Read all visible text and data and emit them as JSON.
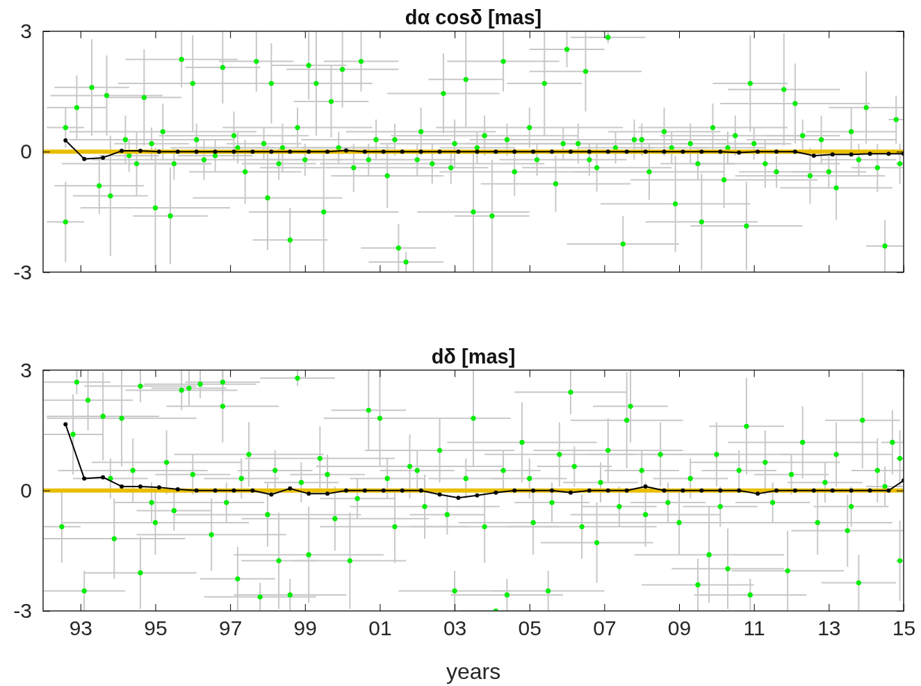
{
  "chart_data": [
    {
      "type": "scatter",
      "title": "dα cosδ   [mas]",
      "xlim": [
        1992,
        2015
      ],
      "ylim": [
        -3,
        3
      ],
      "yticks": [
        -3,
        0,
        3
      ],
      "tick_labels": "y",
      "marker": "circle",
      "xticks": [
        {
          "value": 1993,
          "label": null
        },
        {
          "value": 1995,
          "label": null
        },
        {
          "value": 1997,
          "label": null
        },
        {
          "value": 1999,
          "label": null
        },
        {
          "value": 2001,
          "label": null
        },
        {
          "value": 2003,
          "label": null
        },
        {
          "value": 2005,
          "label": null
        },
        {
          "value": 2007,
          "label": null
        },
        {
          "value": 2009,
          "label": null
        },
        {
          "value": 2011,
          "label": null
        },
        {
          "value": 2013,
          "label": null
        },
        {
          "value": 2015,
          "label": null
        }
      ],
      "ref_lines": [
        {
          "axis": "y",
          "value": 0,
          "color": "#e8be00"
        }
      ],
      "series": [
        {
          "type": "scatter",
          "color": "#00ee00",
          "x": [
            1992.6,
            1992.6,
            1992.9,
            1993.3,
            1993.5,
            1993.7,
            1993.8,
            1994.2,
            1994.5,
            1994.7,
            1995.0,
            1995.2,
            1995.4,
            1995.7,
            1996.0,
            1996.3,
            1996.8,
            1997.1,
            1997.4,
            1997.7,
            1998.0,
            1998.1,
            1998.4,
            1998.6,
            1998.8,
            1999.1,
            1999.3,
            1999.5,
            1999.7,
            2000.0,
            2000.3,
            2000.5,
            2000.9,
            2001.2,
            2001.5,
            2001.7,
            2002.1,
            2002.4,
            2002.7,
            2003.0,
            2003.3,
            2003.5,
            2003.8,
            2004.0,
            2004.3,
            2004.6,
            2005.0,
            2005.4,
            2005.7,
            2006.0,
            2006.3,
            2006.5,
            2006.8,
            2007.1,
            2007.5,
            2007.8,
            2008.2,
            2008.6,
            2008.9,
            2009.3,
            2009.6,
            2009.9,
            2010.2,
            2010.5,
            2010.8,
            2010.9,
            2011.3,
            2011.8,
            2012.1,
            2012.5,
            2012.8,
            2013.2,
            2013.6,
            2014.0,
            2014.3,
            2014.5,
            2014.8,
            2014.9,
            1994.3,
            1994.9,
            1995.5,
            1996.1,
            1996.6,
            1997.2,
            1997.9,
            1998.3,
            1999.0,
            1999.9,
            2000.7,
            2001.4,
            2002.0,
            2002.9,
            2003.6,
            2004.4,
            2005.2,
            2005.9,
            2006.6,
            2007.3,
            2008.0,
            2008.8,
            2009.5,
            2010.3,
            2011.0,
            2011.6,
            2012.3,
            2013.0,
            2013.8
          ],
          "values": [
            0.6,
            -1.75,
            1.1,
            1.6,
            -0.85,
            1.4,
            -1.1,
            0.3,
            -0.3,
            1.35,
            -1.4,
            0.5,
            -1.6,
            2.3,
            1.7,
            -0.2,
            2.1,
            0.4,
            -0.5,
            2.25,
            -1.15,
            1.7,
            0.1,
            -2.2,
            0.6,
            2.15,
            1.7,
            -1.5,
            1.25,
            2.05,
            -0.4,
            2.25,
            0.3,
            -0.6,
            -2.4,
            -2.75,
            0.5,
            -0.3,
            1.45,
            0.2,
            1.8,
            -1.5,
            0.4,
            -1.6,
            2.25,
            -0.5,
            0.6,
            1.7,
            -0.8,
            2.55,
            0.2,
            2.0,
            -0.4,
            2.85,
            -2.3,
            0.3,
            -0.5,
            0.5,
            -1.3,
            0.2,
            -1.75,
            0.6,
            -0.7,
            0.4,
            -1.85,
            1.7,
            -0.3,
            1.55,
            1.2,
            -0.6,
            0.3,
            -0.9,
            0.5,
            1.1,
            -0.4,
            -2.35,
            0.8,
            -0.3,
            -0.1,
            0.2,
            -0.3,
            0.3,
            -0.1,
            0.1,
            0.2,
            -0.3,
            -0.2,
            0.1,
            -0.2,
            0.3,
            -0.2,
            -0.4,
            0.1,
            0.3,
            -0.2,
            0.2,
            -0.2,
            0.1,
            0.3,
            0.1,
            -0.3,
            0.1,
            0.2,
            -0.5,
            0.4,
            -0.5,
            -0.2
          ],
          "errors": [
            0.5,
            1.0,
            0.8,
            1.2,
            0.7,
            1.0,
            1.5,
            0.6,
            0.8,
            1.2,
            1.5,
            0.7,
            1.2,
            0.7,
            1.2,
            0.5,
            0.9,
            0.6,
            0.8,
            0.75,
            1.3,
            1.0,
            0.6,
            0.8,
            0.5,
            0.85,
            1.3,
            1.5,
            0.9,
            0.95,
            0.6,
            0.75,
            0.5,
            0.8,
            0.6,
            0.25,
            0.6,
            0.5,
            1.0,
            0.6,
            1.2,
            1.5,
            0.5,
            1.4,
            0.75,
            0.6,
            0.5,
            1.3,
            0.7,
            0.45,
            0.5,
            1.0,
            0.6,
            0.15,
            0.7,
            0.5,
            0.7,
            0.6,
            1.2,
            0.5,
            1.2,
            0.6,
            0.7,
            0.5,
            1.1,
            1.2,
            0.6,
            1.4,
            1.0,
            0.7,
            0.6,
            0.8,
            0.6,
            0.9,
            0.6,
            0.65,
            0.6,
            0.5,
            0.4,
            0.4,
            0.4,
            0.4,
            0.4,
            0.4,
            0.4,
            0.4,
            0.4,
            0.4,
            0.4,
            0.4,
            0.4,
            0.4,
            0.4,
            0.4,
            0.4,
            0.4,
            0.4,
            0.4,
            0.4,
            0.4,
            0.4,
            0.4,
            0.4,
            0.4,
            0.4,
            0.4,
            0.4
          ],
          "xerrors": [
            0.5,
            0.5,
            0.8,
            1.0,
            1.2,
            1.5,
            1.0,
            1.5,
            2.0,
            1.0,
            2.0,
            2.5,
            1.0,
            1.5,
            2.0,
            3.0,
            1.0,
            2.0,
            1.5,
            1.0,
            2.0,
            1.5,
            3.0,
            1.0,
            2.0,
            1.0,
            1.5,
            2.0,
            1.0,
            1.5,
            2.5,
            1.0,
            2.0,
            1.5,
            1.0,
            1.0,
            2.0,
            3.0,
            1.5,
            2.0,
            1.0,
            1.5,
            2.5,
            1.0,
            1.5,
            2.0,
            2.5,
            1.0,
            2.0,
            1.0,
            3.0,
            1.5,
            2.0,
            1.0,
            1.5,
            2.5,
            2.0,
            1.5,
            2.0,
            2.5,
            1.5,
            2.0,
            2.5,
            2.0,
            1.5,
            1.0,
            2.0,
            1.5,
            2.0,
            2.0,
            2.0,
            1.5,
            1.2,
            1.0,
            0.7,
            0.5,
            0.2,
            0.1,
            0.8,
            1.0,
            1.0,
            1.0,
            1.0,
            1.0,
            1.0,
            1.0,
            1.0,
            1.0,
            1.0,
            1.0,
            1.0,
            1.0,
            1.0,
            1.0,
            1.0,
            1.0,
            1.0,
            1.0,
            1.0,
            1.0,
            1.0,
            1.0,
            1.0,
            1.0,
            1.0,
            1.0,
            1.0
          ]
        },
        {
          "type": "line",
          "color": "#000000",
          "x": [
            1992.6,
            1993.1,
            1993.6,
            1994.1,
            1994.6,
            1995.1,
            1995.6,
            1996.1,
            1996.6,
            1997.1,
            1997.6,
            1998.1,
            1998.6,
            1999.1,
            1999.6,
            2000.1,
            2000.6,
            2001.1,
            2001.6,
            2002.1,
            2002.6,
            2003.1,
            2003.6,
            2004.1,
            2004.6,
            2005.1,
            2005.6,
            2006.1,
            2006.6,
            2007.1,
            2007.6,
            2008.1,
            2008.6,
            2009.1,
            2009.6,
            2010.1,
            2010.6,
            2011.1,
            2011.6,
            2012.1,
            2012.6,
            2013.1,
            2013.6,
            2014.1,
            2014.6,
            2015.0
          ],
          "values": [
            0.28,
            -0.18,
            -0.15,
            0.02,
            0.02,
            0,
            0,
            0,
            0,
            0,
            0,
            0,
            0,
            0,
            0,
            0.03,
            0,
            0,
            0,
            0,
            0,
            0,
            0,
            0,
            0,
            0,
            0,
            0,
            0,
            0,
            0,
            0,
            0,
            0,
            0,
            0,
            -0.02,
            0,
            0,
            0,
            -0.1,
            -0.07,
            -0.07,
            -0.05,
            -0.05,
            -0.05
          ]
        }
      ]
    },
    {
      "type": "scatter",
      "title": "dδ   [mas]",
      "xlabel": "years",
      "xlim": [
        1992,
        2015
      ],
      "ylim": [
        -3,
        3
      ],
      "yticks": [
        -3,
        0,
        3
      ],
      "marker": "circle",
      "xticks": [
        {
          "value": 1993,
          "label": "93"
        },
        {
          "value": 1995,
          "label": "95"
        },
        {
          "value": 1997,
          "label": "97"
        },
        {
          "value": 1999,
          "label": "99"
        },
        {
          "value": 2001,
          "label": "01"
        },
        {
          "value": 2003,
          "label": "03"
        },
        {
          "value": 2005,
          "label": "05"
        },
        {
          "value": 2007,
          "label": "07"
        },
        {
          "value": 2009,
          "label": "09"
        },
        {
          "value": 2011,
          "label": "11"
        },
        {
          "value": 2013,
          "label": "13"
        },
        {
          "value": 2015,
          "label": "15"
        }
      ],
      "ref_lines": [
        {
          "axis": "y",
          "value": 0,
          "color": "#e8be00"
        }
      ],
      "series": [
        {
          "type": "scatter",
          "color": "#00ee00",
          "x": [
            1992.5,
            1992.8,
            1992.9,
            1993.1,
            1993.2,
            1993.6,
            1993.9,
            1994.1,
            1994.4,
            1994.6,
            1994.6,
            1995.0,
            1995.3,
            1995.7,
            1995.9,
            1996.2,
            1996.5,
            1996.8,
            1996.8,
            1997.2,
            1997.5,
            1997.8,
            1998.0,
            1998.3,
            1998.6,
            1998.8,
            1999.1,
            1999.4,
            1999.8,
            2000.2,
            2000.7,
            2001.0,
            2001.4,
            2001.8,
            2002.2,
            2002.6,
            2003.0,
            2003.5,
            2003.8,
            2004.1,
            2004.4,
            2004.8,
            2005.1,
            2005.5,
            2005.8,
            2006.1,
            2006.4,
            2006.8,
            2007.1,
            2007.6,
            2007.7,
            2008.1,
            2008.5,
            2009.0,
            2009.5,
            2009.8,
            2010.0,
            2010.3,
            2010.8,
            2010.9,
            2011.3,
            2011.9,
            2012.3,
            2012.7,
            2013.2,
            2013.5,
            2013.8,
            2013.9,
            2014.3,
            2014.7,
            2014.9,
            2014.9,
            1993.8,
            1994.9,
            1995.5,
            1996.0,
            1996.9,
            1997.3,
            1998.2,
            1998.9,
            1999.6,
            2000.4,
            2001.2,
            2002.0,
            2002.8,
            2003.3,
            2004.3,
            2005.0,
            2005.6,
            2006.2,
            2006.9,
            2007.4,
            2008.0,
            2008.7,
            2009.3,
            2010.1,
            2010.6,
            2011.5,
            2012.0,
            2012.9,
            2013.6,
            2014.5
          ],
          "values": [
            -0.9,
            1.4,
            2.7,
            -2.5,
            2.25,
            1.85,
            -1.2,
            1.8,
            0.5,
            2.6,
            -2.05,
            -0.8,
            0.7,
            2.5,
            2.55,
            2.65,
            -1.1,
            2.7,
            2.1,
            -2.2,
            0.9,
            -2.65,
            -0.6,
            -1.75,
            -2.6,
            2.8,
            -1.6,
            0.8,
            -0.7,
            -1.75,
            2.0,
            1.8,
            -0.9,
            0.6,
            -0.4,
            1.0,
            -2.5,
            1.8,
            -0.9,
            -3.0,
            -2.6,
            1.2,
            -0.8,
            -2.5,
            0.9,
            2.45,
            -0.9,
            -1.3,
            1.0,
            1.75,
            2.1,
            -0.6,
            0.9,
            -0.8,
            -2.35,
            -1.6,
            0.9,
            -1.95,
            1.6,
            -2.6,
            0.7,
            -2.0,
            1.2,
            -0.8,
            0.9,
            -1.0,
            -2.3,
            1.75,
            0.5,
            1.2,
            -1.75,
            0.8,
            0.3,
            -0.3,
            -0.5,
            0.4,
            -0.3,
            0.3,
            0.5,
            0.2,
            0.4,
            -0.2,
            0.3,
            0.5,
            -0.6,
            0.3,
            0.5,
            0.3,
            -0.3,
            0.6,
            0.2,
            -0.4,
            0.5,
            -0.3,
            0.3,
            -0.4,
            0.5,
            -0.3,
            0.4,
            0.2,
            -0.4,
            0.1
          ],
          "errors": [
            0.9,
            1.0,
            0.3,
            0.5,
            0.75,
            1.1,
            1.0,
            1.2,
            0.8,
            0.4,
            0.9,
            0.8,
            0.8,
            0.5,
            0.45,
            0.35,
            0.9,
            0.3,
            0.9,
            0.8,
            0.8,
            0.35,
            0.8,
            1.2,
            0.4,
            0.2,
            1.2,
            0.8,
            0.8,
            1.2,
            1.0,
            1.2,
            0.9,
            0.8,
            0.8,
            0.8,
            0.5,
            1.2,
            0.9,
            null,
            0.4,
            1.0,
            0.8,
            0.5,
            0.8,
            0.55,
            0.8,
            1.0,
            0.8,
            1.2,
            0.9,
            0.8,
            0.8,
            0.8,
            0.65,
            1.2,
            0.8,
            1.0,
            1.2,
            0.4,
            0.8,
            1.0,
            0.9,
            0.8,
            0.8,
            0.9,
            0.7,
            1.2,
            0.8,
            0.8,
            1.0,
            0.7,
            0.5,
            0.5,
            0.5,
            0.5,
            0.5,
            0.5,
            0.5,
            0.5,
            0.5,
            0.5,
            0.5,
            0.5,
            0.5,
            0.5,
            0.5,
            0.5,
            0.5,
            0.5,
            0.5,
            0.5,
            0.5,
            0.5,
            0.5,
            0.5,
            0.5,
            0.5,
            0.5,
            0.5,
            0.5,
            0.5
          ],
          "xerrors": [
            0.5,
            0.8,
            0.9,
            1.1,
            1.2,
            1.5,
            1.9,
            2.0,
            2.0,
            1.5,
            1.5,
            2.5,
            2.0,
            1.5,
            1.0,
            1.5,
            2.0,
            1.0,
            1.5,
            1.0,
            2.0,
            1.5,
            2.5,
            1.0,
            1.5,
            1.0,
            2.0,
            2.0,
            2.5,
            1.5,
            1.0,
            1.5,
            2.0,
            2.5,
            2.0,
            2.0,
            1.5,
            1.0,
            2.0,
            1.0,
            1.5,
            2.0,
            2.0,
            1.5,
            2.0,
            1.5,
            2.0,
            1.5,
            2.0,
            1.5,
            1.0,
            2.0,
            2.0,
            2.0,
            1.5,
            2.0,
            2.0,
            1.5,
            1.0,
            1.5,
            2.0,
            1.5,
            2.0,
            2.0,
            1.5,
            1.5,
            1.0,
            1.0,
            0.7,
            0.3,
            0.1,
            0.1,
            1.0,
            1.0,
            1.0,
            1.0,
            1.0,
            1.0,
            1.0,
            1.0,
            1.0,
            1.0,
            1.0,
            1.0,
            1.0,
            1.0,
            1.0,
            1.0,
            1.0,
            1.0,
            1.0,
            1.0,
            1.0,
            1.0,
            1.0,
            1.0,
            1.0,
            1.0,
            1.0,
            1.0,
            1.0,
            0.5
          ]
        },
        {
          "type": "line",
          "color": "#000000",
          "x": [
            1992.6,
            1993.1,
            1993.6,
            1994.1,
            1994.6,
            1995.1,
            1995.6,
            1996.1,
            1996.6,
            1997.1,
            1997.6,
            1998.1,
            1998.6,
            1999.1,
            1999.6,
            2000.1,
            2000.6,
            2001.1,
            2001.6,
            2002.1,
            2002.6,
            2003.1,
            2003.6,
            2004.1,
            2004.6,
            2005.1,
            2005.6,
            2006.1,
            2006.6,
            2007.1,
            2007.6,
            2008.1,
            2008.6,
            2009.1,
            2009.6,
            2010.1,
            2010.6,
            2011.1,
            2011.6,
            2012.1,
            2012.6,
            2013.1,
            2013.6,
            2014.1,
            2014.6,
            2015.0
          ],
          "values": [
            1.65,
            0.3,
            0.33,
            0.1,
            0.1,
            0.08,
            0.03,
            0,
            0,
            0,
            0,
            -0.1,
            0.05,
            -0.08,
            -0.08,
            0,
            0,
            0,
            0,
            0,
            -0.1,
            -0.18,
            -0.12,
            -0.05,
            0,
            0,
            0,
            -0.05,
            0,
            0,
            0,
            0.1,
            0,
            0,
            0,
            0,
            0,
            -0.08,
            0,
            0,
            0,
            0,
            0,
            0,
            0,
            0.25
          ]
        }
      ]
    }
  ]
}
